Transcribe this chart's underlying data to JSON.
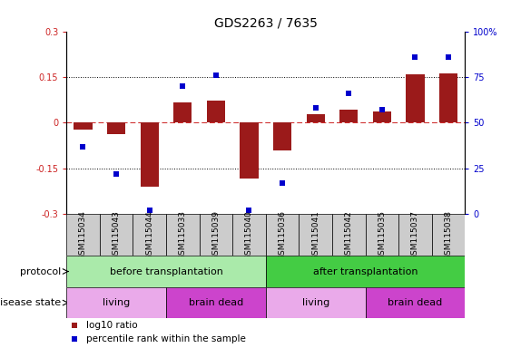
{
  "title": "GDS2263 / 7635",
  "samples": [
    "GSM115034",
    "GSM115043",
    "GSM115044",
    "GSM115033",
    "GSM115039",
    "GSM115040",
    "GSM115036",
    "GSM115041",
    "GSM115042",
    "GSM115035",
    "GSM115037",
    "GSM115038"
  ],
  "log10_ratio": [
    -0.022,
    -0.038,
    -0.21,
    0.068,
    0.072,
    -0.183,
    -0.09,
    0.028,
    0.042,
    0.038,
    0.16,
    0.162
  ],
  "percentile_rank": [
    37,
    22,
    2,
    70,
    76,
    2,
    17,
    58,
    66,
    57,
    86,
    86
  ],
  "ylim_left": [
    -0.3,
    0.3
  ],
  "ylim_right": [
    0,
    100
  ],
  "left_yticks": [
    -0.3,
    -0.15,
    0.0,
    0.15,
    0.3
  ],
  "left_yticklabels": [
    "-0.3",
    "-0.15",
    "0",
    "0.15",
    "0.3"
  ],
  "right_yticks": [
    0,
    25,
    50,
    75,
    100
  ],
  "right_yticklabels": [
    "0",
    "25",
    "50",
    "75",
    "100%"
  ],
  "dotted_lines": [
    0.15,
    0.0,
    -0.15
  ],
  "bar_color": "#9b1a1a",
  "dot_color": "#0000cc",
  "bar_width": 0.55,
  "protocol_groups": [
    {
      "label": "before transplantation",
      "start": 0,
      "end": 6,
      "color": "#aaeaaa"
    },
    {
      "label": "after transplantation",
      "start": 6,
      "end": 12,
      "color": "#44cc44"
    }
  ],
  "disease_groups": [
    {
      "label": "living",
      "start": 0,
      "end": 3,
      "color": "#eaaaea"
    },
    {
      "label": "brain dead",
      "start": 3,
      "end": 6,
      "color": "#cc44cc"
    },
    {
      "label": "living",
      "start": 6,
      "end": 9,
      "color": "#eaaaea"
    },
    {
      "label": "brain dead",
      "start": 9,
      "end": 12,
      "color": "#cc44cc"
    }
  ],
  "protocol_label": "protocol",
  "disease_label": "disease state",
  "legend_bar_label": "log10 ratio",
  "legend_dot_label": "percentile rank within the sample",
  "red_color": "#cc2222",
  "blue_color": "#0000cc",
  "title_fontsize": 10,
  "tick_fontsize": 7,
  "annot_fontsize": 8,
  "sample_fontsize": 6.5,
  "gray_color": "#cccccc"
}
